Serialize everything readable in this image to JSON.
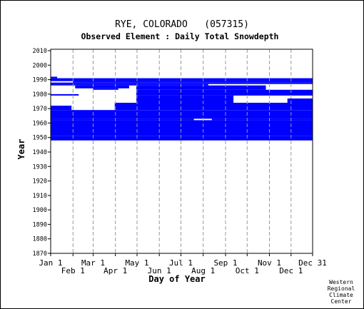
{
  "chart_data": {
    "type": "heatmap",
    "title": "RYE, COLORADO   (057315)",
    "subtitle": "Observed Element : Daily Total Snowdepth",
    "xlabel": "Day of Year",
    "ylabel": "Year",
    "xlim": [
      1,
      365
    ],
    "ylim": [
      1870,
      2011
    ],
    "x_ticks_upper": [
      {
        "label": "Jan 1",
        "day": 1
      },
      {
        "label": "Mar 1",
        "day": 60
      },
      {
        "label": "May 1",
        "day": 121
      },
      {
        "label": "Jul 1",
        "day": 182
      },
      {
        "label": "Sep 1",
        "day": 244
      },
      {
        "label": "Nov 1",
        "day": 305
      },
      {
        "label": "Dec 31",
        "day": 365
      }
    ],
    "x_ticks_lower": [
      {
        "label": "Feb 1",
        "day": 32
      },
      {
        "label": "Apr 1",
        "day": 91
      },
      {
        "label": "Jun 1",
        "day": 152
      },
      {
        "label": "Aug 1",
        "day": 213
      },
      {
        "label": "Oct 1",
        "day": 274
      },
      {
        "label": "Dec 1",
        "day": 335
      }
    ],
    "y_ticks": [
      1870,
      1880,
      1890,
      1900,
      1910,
      1920,
      1930,
      1940,
      1950,
      1960,
      1970,
      1980,
      1990,
      2000,
      2010
    ],
    "grid": true,
    "series": [
      {
        "color": "#0000ff",
        "bands": [
          {
            "year_start": 1948,
            "year_end": 1951,
            "day_start": 1,
            "day_end": 365
          },
          {
            "year_start": 1951,
            "year_end": 1962,
            "day_start": 1,
            "day_end": 365
          },
          {
            "year_start": 1962,
            "year_end": 1963,
            "day_start": 1,
            "day_end": 200
          },
          {
            "year_start": 1962,
            "year_end": 1963,
            "day_start": 225,
            "day_end": 365
          },
          {
            "year_start": 1963,
            "year_end": 1969,
            "day_start": 1,
            "day_end": 365
          },
          {
            "year_start": 1969,
            "year_end": 1972,
            "day_start": 1,
            "day_end": 30
          },
          {
            "year_start": 1969,
            "year_end": 1974,
            "day_start": 90,
            "day_end": 365
          },
          {
            "year_start": 1974,
            "year_end": 1979,
            "day_start": 120,
            "day_end": 255
          },
          {
            "year_start": 1974,
            "year_end": 1977,
            "day_start": 330,
            "day_end": 365
          },
          {
            "year_start": 1979,
            "year_end": 1980,
            "day_start": 1,
            "day_end": 40
          },
          {
            "year_start": 1979,
            "year_end": 1983,
            "day_start": 120,
            "day_end": 365
          },
          {
            "year_start": 1983,
            "year_end": 1984,
            "day_start": 60,
            "day_end": 95
          },
          {
            "year_start": 1983,
            "year_end": 1986,
            "day_start": 120,
            "day_end": 300
          },
          {
            "year_start": 1984,
            "year_end": 1986,
            "day_start": 35,
            "day_end": 110
          },
          {
            "year_start": 1986,
            "year_end": 1987,
            "day_start": 1,
            "day_end": 220
          },
          {
            "year_start": 1987,
            "year_end": 1988,
            "day_start": 1,
            "day_end": 365
          },
          {
            "year_start": 1988,
            "year_end": 1989,
            "day_start": 32,
            "day_end": 365
          },
          {
            "year_start": 1989,
            "year_end": 1991,
            "day_start": 1,
            "day_end": 365
          },
          {
            "year_start": 1991,
            "year_end": 1992,
            "day_start": 1,
            "day_end": 10
          }
        ]
      }
    ]
  },
  "credit": {
    "line1": "Western",
    "line2": "Regional",
    "line3": "Climate",
    "line4": "Center"
  },
  "colors": {
    "data": "#0000ff",
    "grid": "#999999",
    "axis": "#000000",
    "background": "#ffffff"
  }
}
